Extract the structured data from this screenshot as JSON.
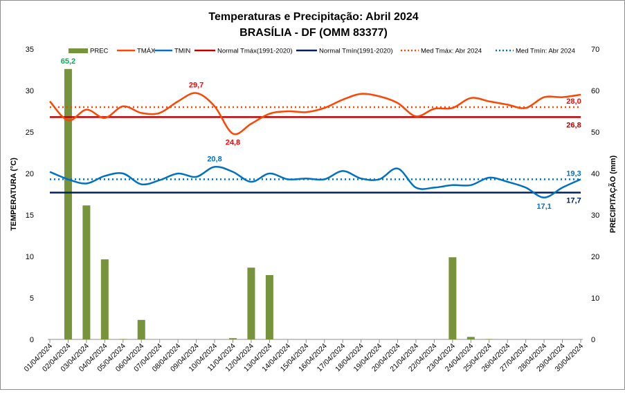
{
  "chart_data": {
    "type": "bar+line",
    "title": "Temperaturas e Precipitação: Abril 2024",
    "subtitle": "BRASÍLIA - DF (OMM 83377)",
    "ylabel": "TEMPERATURA (°C)",
    "y2label": "PRECIPITAÇÃO (mm)",
    "ylim": [
      0,
      35
    ],
    "y2lim": [
      0,
      70
    ],
    "yticks": [
      "0",
      "5",
      "10",
      "15",
      "20",
      "25",
      "30",
      "35"
    ],
    "y2ticks": [
      "0",
      "10",
      "20",
      "30",
      "40",
      "50",
      "60",
      "70"
    ],
    "categories": [
      "01/04/2024",
      "02/04/2024",
      "03/04/2024",
      "04/04/2024",
      "05/04/2024",
      "06/04/2024",
      "07/04/2024",
      "08/04/2024",
      "09/04/2024",
      "10/04/2024",
      "11/04/2024",
      "12/04/2024",
      "13/04/2024",
      "14/04/2024",
      "15/04/2024",
      "16/04/2024",
      "17/04/2024",
      "18/04/2024",
      "19/04/2024",
      "20/04/2024",
      "21/04/2024",
      "22/04/2024",
      "23/04/2024",
      "24/04/2024",
      "25/04/2024",
      "26/04/2024",
      "27/04/2024",
      "28/04/2024",
      "29/04/2024",
      "30/04/2024"
    ],
    "legend": [
      "PREC",
      "TMÁX",
      "TMIN",
      "Normal Tmáx(1991-2020)",
      "Normal Tmín(1991-2020)",
      "Med Tmáx: Abr 2024",
      "Med Tmín: Abr 2024"
    ],
    "legend_position": "top",
    "series": [
      {
        "name": "PREC",
        "type": "bar",
        "axis": "right",
        "color": "#77933c",
        "values": [
          0,
          65.2,
          32.3,
          19.3,
          0.1,
          4.7,
          0,
          0,
          0,
          0,
          0.3,
          17.3,
          15.5,
          0,
          0,
          0,
          0,
          0,
          0,
          0,
          0,
          0,
          19.8,
          0.6,
          0.1,
          0,
          0,
          0,
          0,
          0
        ]
      },
      {
        "name": "TMÁX",
        "type": "line",
        "color": "#ff4500",
        "values": [
          28.7,
          26.4,
          27.7,
          26.7,
          28.1,
          27.3,
          27.3,
          28.7,
          29.7,
          28.1,
          24.8,
          26.0,
          27.2,
          27.5,
          27.4,
          27.9,
          28.9,
          29.6,
          29.3,
          28.5,
          26.9,
          27.8,
          27.9,
          29.1,
          28.7,
          28.3,
          27.9,
          29.2,
          29.2,
          29.5
        ]
      },
      {
        "name": "TMIN",
        "type": "line",
        "color": "#0070c0",
        "values": [
          20.2,
          19.3,
          18.8,
          19.7,
          20.0,
          18.7,
          19.2,
          20.0,
          19.6,
          20.8,
          20.2,
          19.0,
          20.0,
          19.3,
          19.4,
          19.3,
          20.3,
          19.4,
          19.3,
          20.6,
          18.3,
          18.3,
          18.6,
          18.6,
          19.5,
          19.0,
          18.3,
          17.1,
          18.3,
          19.3
        ]
      },
      {
        "name": "Normal Tmáx(1991-2020)",
        "type": "hline",
        "color": "#c00000",
        "value": 26.8
      },
      {
        "name": "Normal Tmín(1991-2020)",
        "type": "hline",
        "color": "#002060",
        "value": 17.7
      },
      {
        "name": "Med Tmáx: Abr 2024",
        "type": "dotted",
        "color": "#ff4500",
        "value": 28.0
      },
      {
        "name": "Med Tmín: Abr 2024",
        "type": "dotted",
        "color": "#0070c0",
        "value": 19.3
      }
    ],
    "annotations": [
      {
        "text": "65,2",
        "series": "PREC",
        "index": 1,
        "color": "#00b050"
      },
      {
        "text": "29,7",
        "series": "TMÁX",
        "index": 8,
        "color": "#ff0000"
      },
      {
        "text": "24,8",
        "series": "TMÁX",
        "index": 10,
        "color": "#ff0000"
      },
      {
        "text": "20,8",
        "series": "TMIN",
        "index": 9,
        "color": "#0070c0"
      },
      {
        "text": "17,1",
        "series": "TMIN",
        "index": 27,
        "color": "#0070c0"
      },
      {
        "text": "28,0",
        "series": "Med Tmáx: Abr 2024",
        "color": "#ff0000"
      },
      {
        "text": "26,8",
        "series": "Normal Tmáx(1991-2020)",
        "color": "#c00000"
      },
      {
        "text": "19,3",
        "series": "Med Tmín: Abr 2024",
        "color": "#0070c0"
      },
      {
        "text": "17,7",
        "series": "Normal Tmín(1991-2020)",
        "color": "#002060"
      }
    ]
  }
}
